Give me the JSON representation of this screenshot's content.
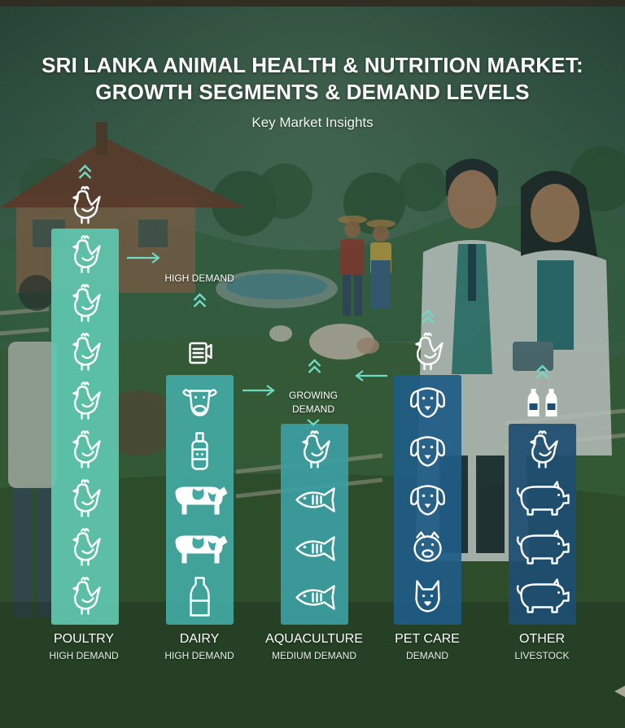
{
  "title_line1": "SRI LANKA ANIMAL HEALTH & NUTRITION MARKET:",
  "title_line2": "GROWTH SEGMENTS & DEMAND LEVELS",
  "subtitle": "Key Market Insights",
  "annotations": {
    "high_demand": "HIGH DEMAND",
    "growing_line1": "GROWING",
    "growing_line2": "DEMAND"
  },
  "colors": {
    "poultry": "#5fc7ae",
    "dairy": "#43a9a3",
    "aquaculture": "#3c9ea1",
    "pet_care": "#1f5d85",
    "other": "#1e4f71",
    "icon": "#ffffff"
  },
  "chart_data": {
    "type": "bar",
    "title": "SRI LANKA ANIMAL HEALTH & NUTRITION MARKET: GROWTH SEGMENTS & DEMAND LEVELS",
    "subtitle": "Key Market Insights",
    "categories": [
      "POULTRY",
      "DAIRY",
      "AQUACULTURE",
      "PET CARE",
      "OTHER"
    ],
    "category_sublabels": [
      "HIGH DEMAND",
      "HIGH DEMAND",
      "MEDIUM DEMAND",
      "DEMAND",
      "LIVESTOCK"
    ],
    "values": [
      8,
      5,
      4,
      5,
      4
    ],
    "bar_icons": [
      [
        "chicken-icon",
        "chicken-icon",
        "chicken-icon",
        "chicken-icon",
        "chicken-icon",
        "chicken-icon",
        "chicken-icon",
        "chicken-icon"
      ],
      [
        "cow-head-icon",
        "feed-icon",
        "cow-icon",
        "cow-icon",
        "milk-bottle-icon"
      ],
      [
        "chicken-icon",
        "fish-icon",
        "fish-icon",
        "fish-icon"
      ],
      [
        "dog-icon",
        "dog-icon",
        "dog-icon",
        "pig-face-icon",
        "cat-icon"
      ],
      [
        "chicken-icon",
        "pig-icon",
        "pig-icon",
        "pig-icon"
      ]
    ],
    "top_icons": [
      "chicken-icon",
      "dairy-feed-icon",
      "",
      "chicken-icon",
      "milk-bottles-icon"
    ],
    "ylim": [
      0,
      8
    ],
    "grid": false,
    "legend": "none"
  }
}
